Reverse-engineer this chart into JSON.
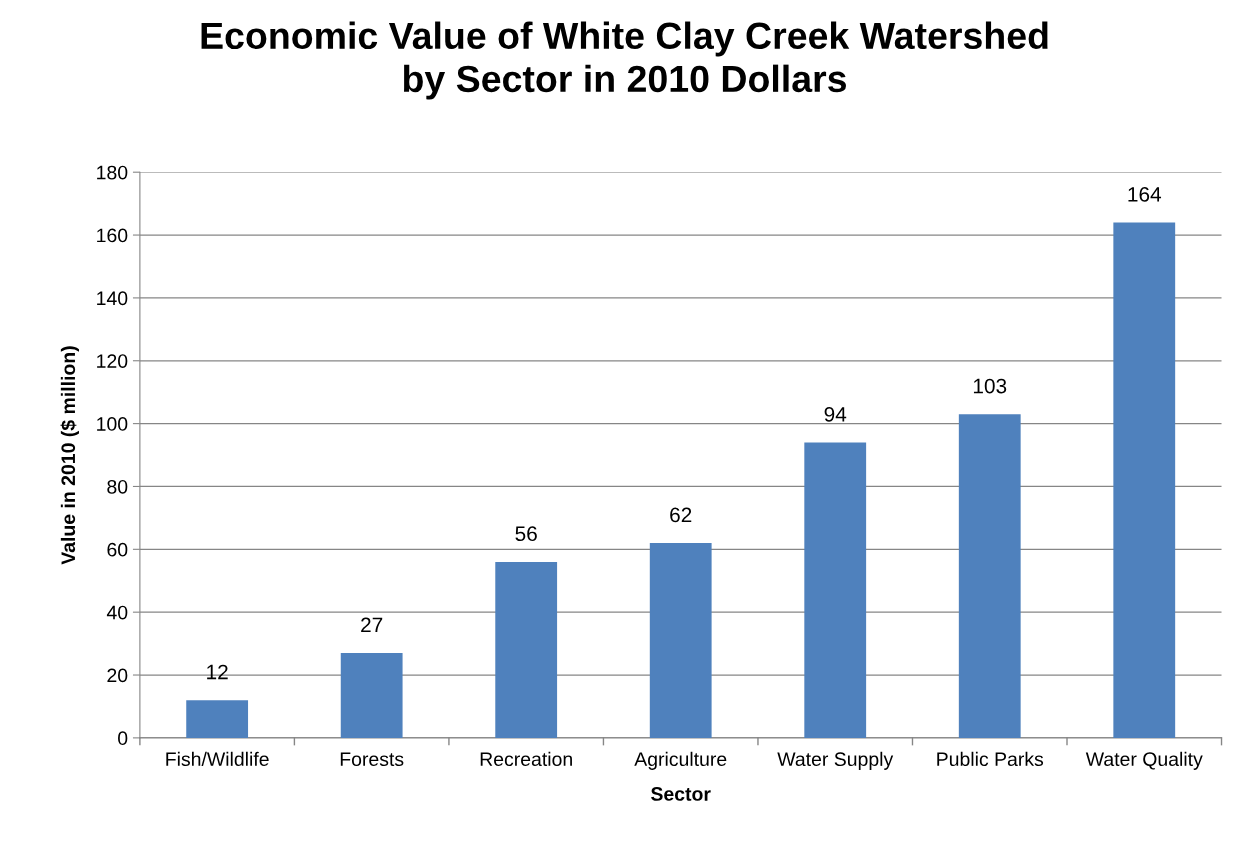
{
  "chart_data": {
    "type": "bar",
    "title": "Economic Value of White Clay Creek Watershed\nby Sector in 2010 Dollars",
    "xlabel": "Sector",
    "ylabel": "Value in 2010 ($ million)",
    "categories": [
      "Fish/Wildlife",
      "Forests",
      "Recreation",
      "Agriculture",
      "Water Supply",
      "Public Parks",
      "Water Quality"
    ],
    "values": [
      12,
      27,
      56,
      62,
      94,
      103,
      164
    ],
    "color": "#4f81bd",
    "ylim": [
      0,
      180
    ],
    "yticks": [
      0,
      20,
      40,
      60,
      80,
      100,
      120,
      140,
      160,
      180
    ],
    "grid": "y",
    "data_labels": true,
    "legend": false
  }
}
